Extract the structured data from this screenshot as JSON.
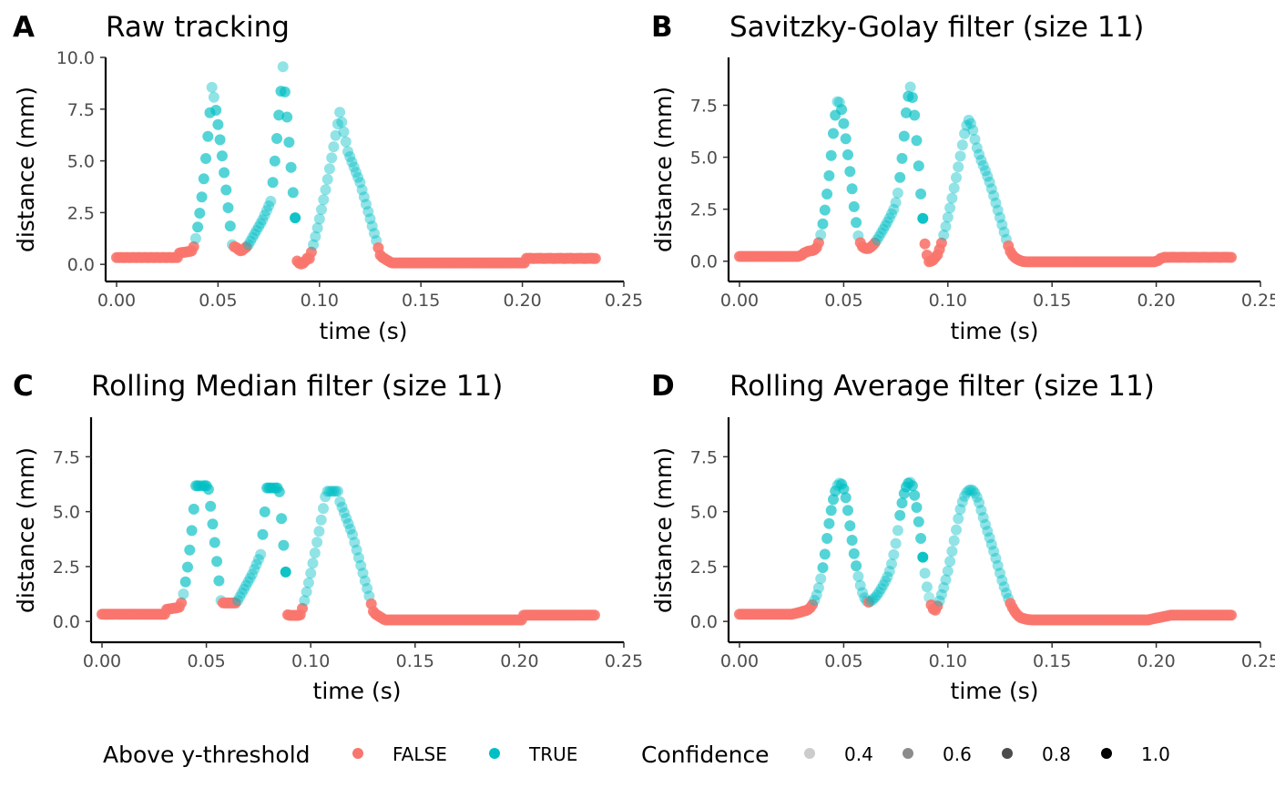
{
  "colors": {
    "false": "#F8766D",
    "true": "#00BFC4"
  },
  "legend": {
    "color_title": "Above y-threshold",
    "color_items": [
      {
        "label": "FALSE",
        "color": "#F8766D"
      },
      {
        "label": "TRUE",
        "color": "#00BFC4"
      }
    ],
    "alpha_title": "Confidence",
    "alpha_items": [
      {
        "label": "0.4",
        "alpha": 0.2
      },
      {
        "label": "0.6",
        "alpha": 0.45
      },
      {
        "label": "0.8",
        "alpha": 0.7
      },
      {
        "label": "1.0",
        "alpha": 1.0
      }
    ]
  },
  "chart_data": [
    {
      "tag": "A",
      "title": "Raw tracking",
      "type": "scatter",
      "filter": "raw",
      "xlabel": "time (s)",
      "ylabel": "distance (mm)",
      "xlim": [
        0,
        0.25
      ],
      "ylim": [
        -0.3,
        10.0
      ],
      "xticks": [
        "0.00",
        "0.05",
        "0.10",
        "0.15",
        "0.20",
        "0.25"
      ],
      "yticks": [
        "0.0",
        "2.5",
        "5.0",
        "7.5",
        "10.0"
      ],
      "grid": false,
      "threshold_mm": 0.9
    },
    {
      "tag": "B",
      "title": "Savitzky-Golay filter (size 11)",
      "type": "scatter",
      "filter": "savgol",
      "xlabel": "time (s)",
      "ylabel": "distance (mm)",
      "xlim": [
        0,
        0.25
      ],
      "ylim": [
        -0.45,
        9.8
      ],
      "xticks": [
        "0.00",
        "0.05",
        "0.10",
        "0.15",
        "0.20",
        "0.25"
      ],
      "yticks": [
        "0.0",
        "2.5",
        "5.0",
        "7.5"
      ],
      "grid": false,
      "threshold_mm": 0.9
    },
    {
      "tag": "C",
      "title": "Rolling Median filter (size 11)",
      "type": "scatter",
      "filter": "median",
      "xlabel": "time (s)",
      "ylabel": "distance (mm)",
      "xlim": [
        0,
        0.25
      ],
      "ylim": [
        -0.45,
        9.3
      ],
      "xticks": [
        "0.00",
        "0.05",
        "0.10",
        "0.15",
        "0.20",
        "0.25"
      ],
      "yticks": [
        "0.0",
        "2.5",
        "5.0",
        "7.5"
      ],
      "grid": false,
      "threshold_mm": 0.9
    },
    {
      "tag": "D",
      "title": "Rolling Average filter (size 11)",
      "type": "scatter",
      "filter": "mean",
      "xlabel": "time (s)",
      "ylabel": "distance (mm)",
      "xlim": [
        0,
        0.25
      ],
      "ylim": [
        -0.45,
        9.3
      ],
      "xticks": [
        "0.00",
        "0.05",
        "0.10",
        "0.15",
        "0.20",
        "0.25"
      ],
      "yticks": [
        "0.0",
        "2.5",
        "5.0",
        "7.5"
      ],
      "grid": false,
      "threshold_mm": 0.9
    }
  ]
}
